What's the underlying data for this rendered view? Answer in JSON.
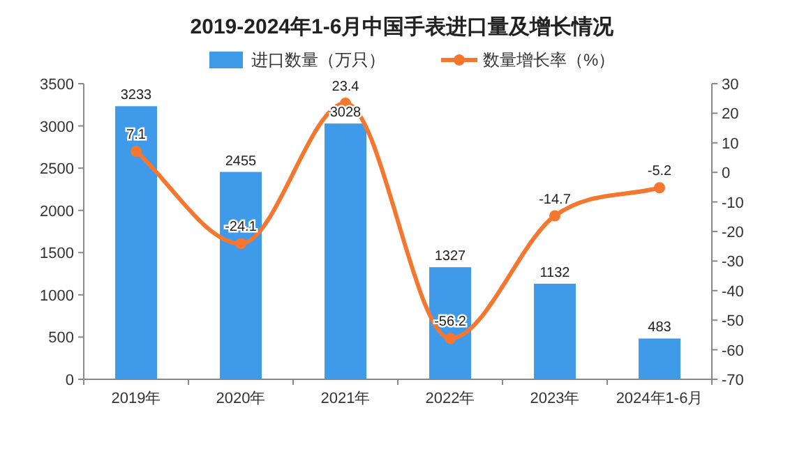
{
  "chart_data": {
    "type": "bar",
    "title": "2019-2024年1-6月中国手表进口量及增长情况",
    "categories": [
      "2019年",
      "2020年",
      "2021年",
      "2022年",
      "2023年",
      "2024年1-6月"
    ],
    "series": [
      {
        "name": "进口数量（万只）",
        "color": "#3f9bea",
        "values": [
          3233,
          2455,
          3028,
          1327,
          1132,
          483
        ]
      },
      {
        "name": "数量增长率（%）",
        "type": "line",
        "axis": "y2",
        "color": "#f5772f",
        "marker": "circle",
        "values": [
          7.1,
          -24.1,
          23.4,
          -56.2,
          -14.7,
          -5.2
        ]
      }
    ],
    "data_labels": true,
    "legend": "top",
    "grid": false,
    "ylim": [
      0,
      3500
    ],
    "yticks": [
      0,
      500,
      1000,
      1500,
      2000,
      2500,
      3000,
      3500
    ],
    "y2lim": [
      -70,
      30
    ],
    "y2ticks": [
      -70,
      -60,
      -50,
      -40,
      -30,
      -20,
      -10,
      0,
      10,
      20,
      30
    ]
  }
}
